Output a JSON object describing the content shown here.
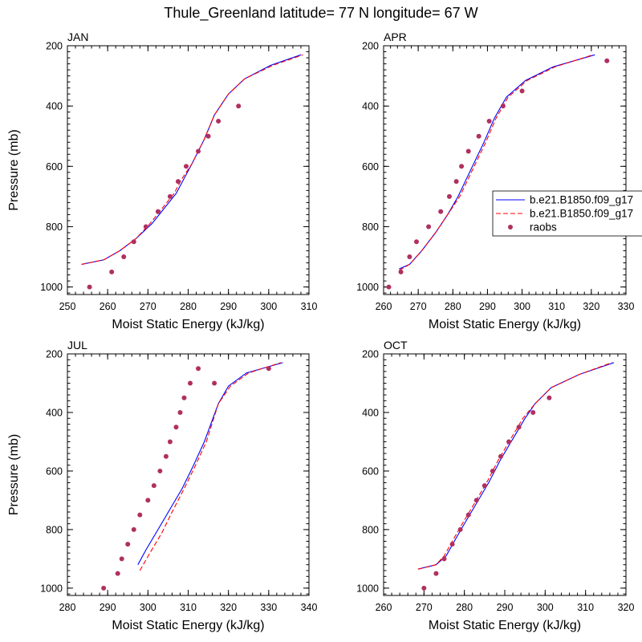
{
  "figure": {
    "title": "Thule_Greenland  latitude= 77 N longitude= 67 W"
  },
  "colors": {
    "model1": "#0000ff",
    "model2": "#ff0000",
    "raobs": "#b03060"
  },
  "legend": {
    "placement": "right of APR panel",
    "entries": [
      {
        "label": "b.e21.B1850.f09_g17",
        "style": "solid",
        "color": "#0000ff"
      },
      {
        "label": "b.e21.B1850.f09_g17",
        "style": "dashed",
        "color": "#ff0000"
      },
      {
        "label": "raobs",
        "style": "marker",
        "color": "#b03060"
      }
    ]
  },
  "chart_data": [
    {
      "type": "line",
      "panel": "JAN",
      "xlabel": "Moist Static Energy (kJ/kg)",
      "ylabel": "Pressure (mb)",
      "xlim": [
        250,
        310
      ],
      "ylim": [
        1025,
        200
      ],
      "xticks": [
        250,
        260,
        270,
        280,
        290,
        300,
        310
      ],
      "yticks": [
        200,
        400,
        600,
        800,
        1000
      ],
      "series": [
        {
          "name": "b.e21.B1850.f09_g17",
          "style": "solid",
          "color": "#0000ff",
          "x": [
            253.5,
            259,
            263,
            267,
            271,
            274,
            277,
            279,
            281,
            284,
            286.5,
            290,
            294,
            300.5,
            308
          ],
          "y": [
            925,
            910,
            880,
            840,
            790,
            740,
            690,
            640,
            590,
            510,
            430,
            360,
            310,
            265,
            230
          ]
        },
        {
          "name": "b.e21.B1850.f09_g17",
          "style": "dashed",
          "color": "#ff0000",
          "x": [
            253.5,
            259,
            263,
            267,
            270.5,
            273.5,
            276.5,
            278.5,
            281,
            284,
            286.5,
            290,
            294,
            301,
            308.5
          ],
          "y": [
            925,
            910,
            880,
            840,
            790,
            740,
            690,
            640,
            590,
            510,
            430,
            360,
            310,
            265,
            230
          ]
        },
        {
          "name": "raobs",
          "style": "marker",
          "color": "#b03060",
          "x": [
            255.5,
            261,
            264,
            266.5,
            269.5,
            272.5,
            275.5,
            277.5,
            279.5,
            282.5,
            285,
            287.5,
            292.5
          ],
          "y": [
            1000,
            950,
            900,
            850,
            800,
            750,
            700,
            650,
            600,
            550,
            500,
            450,
            400
          ]
        }
      ]
    },
    {
      "type": "line",
      "panel": "APR",
      "xlabel": "Moist Static Energy (kJ/kg)",
      "ylabel": "",
      "xlim": [
        260,
        330
      ],
      "ylim": [
        1025,
        200
      ],
      "xticks": [
        260,
        270,
        280,
        290,
        300,
        310,
        320,
        330
      ],
      "yticks": [
        200,
        400,
        600,
        800,
        1000
      ],
      "series": [
        {
          "name": "b.e21.B1850.f09_g17",
          "style": "solid",
          "color": "#0000ff",
          "x": [
            264.5,
            267.5,
            271,
            275,
            278.5,
            281.5,
            284,
            286.5,
            289,
            292,
            295.5,
            301,
            309,
            321
          ],
          "y": [
            940,
            925,
            880,
            820,
            760,
            700,
            640,
            580,
            520,
            440,
            370,
            315,
            270,
            230
          ]
        },
        {
          "name": "b.e21.B1850.f09_g17",
          "style": "dashed",
          "color": "#ff0000",
          "x": [
            264.5,
            267.5,
            271,
            275,
            278.5,
            282,
            284.5,
            287,
            289.5,
            292.5,
            296,
            301.5,
            309.5,
            320.5
          ],
          "y": [
            945,
            925,
            880,
            820,
            760,
            700,
            640,
            580,
            520,
            440,
            370,
            315,
            270,
            230
          ]
        },
        {
          "name": "raobs",
          "style": "marker",
          "color": "#b03060",
          "x": [
            261.5,
            265,
            267.5,
            269.5,
            273,
            276.5,
            279,
            281,
            282.5,
            284.5,
            287.5,
            290.5,
            294.5,
            300,
            324.5
          ],
          "y": [
            1000,
            950,
            900,
            850,
            800,
            750,
            700,
            650,
            600,
            550,
            500,
            450,
            400,
            350,
            250
          ]
        }
      ]
    },
    {
      "type": "line",
      "panel": "JUL",
      "xlabel": "Moist Static Energy (kJ/kg)",
      "ylabel": "Pressure (mb)",
      "xlim": [
        280,
        340
      ],
      "ylim": [
        1025,
        200
      ],
      "xticks": [
        280,
        290,
        300,
        310,
        320,
        330,
        340
      ],
      "yticks": [
        200,
        400,
        600,
        800,
        1000
      ],
      "series": [
        {
          "name": "b.e21.B1850.f09_g17",
          "style": "solid",
          "color": "#0000ff",
          "x": [
            297.5,
            299.5,
            302.5,
            305.5,
            308.5,
            311,
            314,
            317.5,
            320,
            324.5,
            333.5
          ],
          "y": [
            920,
            870,
            800,
            730,
            660,
            590,
            500,
            370,
            310,
            265,
            230
          ]
        },
        {
          "name": "b.e21.B1850.f09_g17",
          "style": "dashed",
          "color": "#ff0000",
          "x": [
            298,
            300.5,
            303.5,
            306,
            309,
            311.5,
            314.5,
            317.5,
            320.5,
            325,
            333
          ],
          "y": [
            940,
            880,
            810,
            740,
            660,
            590,
            500,
            370,
            310,
            265,
            230
          ]
        },
        {
          "name": "raobs",
          "style": "marker",
          "color": "#b03060",
          "x": [
            289,
            292.5,
            293.5,
            295,
            296.5,
            298,
            300,
            301.5,
            303,
            304.5,
            305.5,
            307,
            308,
            309,
            310.5,
            312.5,
            316.5,
            330
          ],
          "y": [
            1000,
            950,
            900,
            850,
            800,
            750,
            700,
            650,
            600,
            550,
            500,
            450,
            400,
            350,
            300,
            250,
            300,
            250
          ]
        }
      ]
    },
    {
      "type": "line",
      "panel": "OCT",
      "xlabel": "Moist Static Energy (kJ/kg)",
      "ylabel": "",
      "xlim": [
        260,
        320
      ],
      "ylim": [
        1025,
        200
      ],
      "xticks": [
        260,
        270,
        280,
        290,
        300,
        310,
        320
      ],
      "yticks": [
        200,
        400,
        600,
        800,
        1000
      ],
      "series": [
        {
          "name": "b.e21.B1850.f09_g17",
          "style": "solid",
          "color": "#0000ff",
          "x": [
            268.5,
            273,
            275.5,
            277.5,
            280,
            283,
            286,
            289,
            292,
            295,
            297.5,
            301.5,
            308.5,
            317
          ],
          "y": [
            935,
            920,
            890,
            840,
            780,
            710,
            640,
            560,
            490,
            420,
            370,
            315,
            270,
            230
          ]
        },
        {
          "name": "b.e21.B1850.f09_g17",
          "style": "dashed",
          "color": "#ff0000",
          "x": [
            268.5,
            273,
            275,
            277,
            279.5,
            282.5,
            285.5,
            288.5,
            291.5,
            294.5,
            297.5,
            301.5,
            308.5,
            316.5
          ],
          "y": [
            935,
            920,
            890,
            840,
            780,
            710,
            640,
            560,
            490,
            420,
            370,
            315,
            270,
            230
          ]
        },
        {
          "name": "raobs",
          "style": "marker",
          "color": "#b03060",
          "x": [
            270,
            273,
            275,
            277,
            279,
            281,
            283,
            285,
            287,
            289,
            291,
            293.5,
            297,
            301
          ],
          "y": [
            1000,
            950,
            900,
            850,
            800,
            750,
            700,
            650,
            600,
            550,
            500,
            450,
            400,
            350
          ]
        }
      ]
    }
  ]
}
